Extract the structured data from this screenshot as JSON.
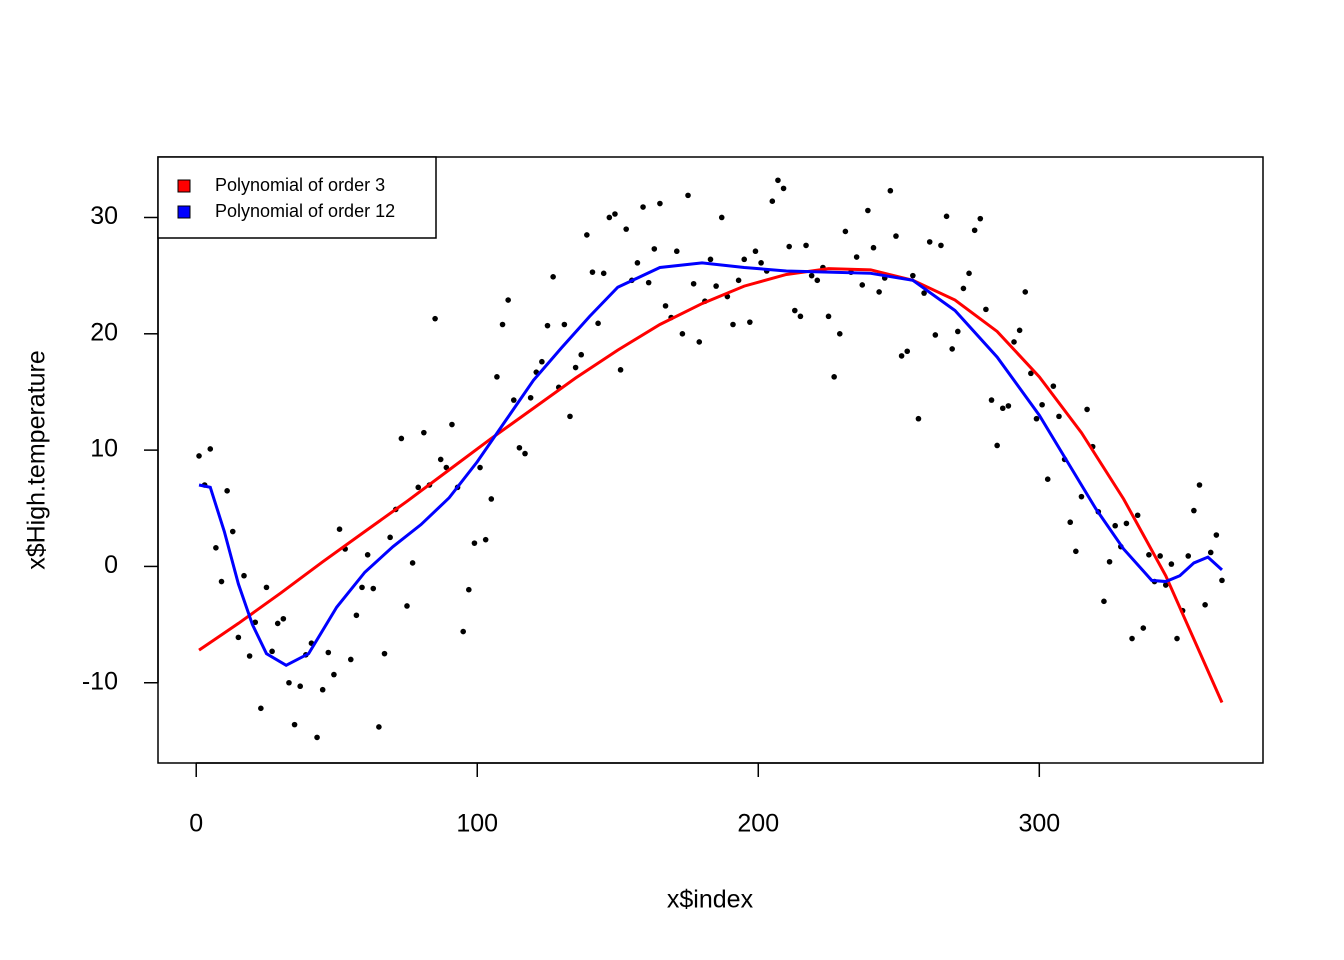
{
  "chart_data": {
    "type": "scatter",
    "x_label": "x$index",
    "y_label": "x$High.temperature",
    "xlim": [
      -13.6,
      379.6
    ],
    "ylim": [
      -16.9,
      35.2
    ],
    "xticks": [
      0,
      100,
      200,
      300
    ],
    "yticks": [
      -10,
      0,
      10,
      20,
      30
    ],
    "legend": "top-left",
    "points": {
      "color": "#000000",
      "x": [
        1,
        3,
        5,
        7,
        9,
        11,
        13,
        15,
        17,
        19,
        21,
        23,
        25,
        27,
        29,
        31,
        33,
        35,
        37,
        39,
        41,
        43,
        45,
        47,
        49,
        51,
        53,
        55,
        57,
        59,
        61,
        63,
        65,
        67,
        69,
        71,
        73,
        75,
        77,
        79,
        81,
        83,
        85,
        87,
        89,
        91,
        93,
        95,
        97,
        99,
        101,
        103,
        105,
        107,
        109,
        111,
        113,
        115,
        117,
        119,
        121,
        123,
        125,
        127,
        129,
        131,
        133,
        135,
        137,
        139,
        141,
        143,
        145,
        147,
        149,
        151,
        153,
        155,
        157,
        159,
        161,
        163,
        165,
        167,
        169,
        171,
        173,
        175,
        177,
        179,
        181,
        183,
        185,
        187,
        189,
        191,
        193,
        195,
        197,
        199,
        201,
        203,
        205,
        207,
        209,
        211,
        213,
        215,
        217,
        219,
        221,
        223,
        225,
        227,
        229,
        231,
        233,
        235,
        237,
        239,
        241,
        243,
        245,
        247,
        249,
        251,
        253,
        255,
        257,
        259,
        261,
        263,
        265,
        267,
        269,
        271,
        273,
        275,
        277,
        279,
        281,
        283,
        285,
        287,
        289,
        291,
        293,
        295,
        297,
        299,
        301,
        303,
        305,
        307,
        309,
        311,
        313,
        315,
        317,
        319,
        321,
        323,
        325,
        327,
        329,
        331,
        333,
        335,
        337,
        339,
        341,
        343,
        345,
        347,
        349,
        351,
        353,
        355,
        357,
        359,
        361,
        363,
        365
      ],
      "y": [
        9.5,
        7.0,
        10.1,
        1.6,
        -1.3,
        6.5,
        3.0,
        -6.1,
        -0.8,
        -7.7,
        -4.8,
        -12.2,
        -1.8,
        -7.3,
        -4.9,
        -4.5,
        -10.0,
        -13.6,
        -10.3,
        -7.6,
        -6.6,
        -14.7,
        -10.6,
        -7.4,
        -9.3,
        3.2,
        1.5,
        -8.0,
        -4.2,
        -1.8,
        1.0,
        -1.9,
        -13.8,
        -7.5,
        2.5,
        4.9,
        11.0,
        -3.4,
        0.3,
        6.8,
        11.5,
        7.0,
        21.3,
        9.2,
        8.5,
        12.2,
        6.8,
        -5.6,
        -2.0,
        2.0,
        8.5,
        2.3,
        5.8,
        16.3,
        20.8,
        22.9,
        14.3,
        10.2,
        9.7,
        14.5,
        16.7,
        17.6,
        20.7,
        24.9,
        15.4,
        20.8,
        12.9,
        17.1,
        18.2,
        28.5,
        25.3,
        20.9,
        25.2,
        30.0,
        30.3,
        16.9,
        29.0,
        24.6,
        26.1,
        30.9,
        24.4,
        27.3,
        31.2,
        22.4,
        21.4,
        27.1,
        20.0,
        31.9,
        24.3,
        19.3,
        22.8,
        26.4,
        24.1,
        30.0,
        23.2,
        20.8,
        24.6,
        26.4,
        21.0,
        27.1,
        26.1,
        25.4,
        31.4,
        33.2,
        32.5,
        27.5,
        22.0,
        21.5,
        27.6,
        25.0,
        24.6,
        25.7,
        21.5,
        16.3,
        20.0,
        28.8,
        25.3,
        26.6,
        24.2,
        30.6,
        27.4,
        23.6,
        24.8,
        32.3,
        28.4,
        18.1,
        18.5,
        25.0,
        12.7,
        23.5,
        27.9,
        19.9,
        27.6,
        30.1,
        18.7,
        20.2,
        23.9,
        25.2,
        28.9,
        29.9,
        22.1,
        14.3,
        10.4,
        13.6,
        13.8,
        19.3,
        20.3,
        23.6,
        16.6,
        12.7,
        13.9,
        7.5,
        15.5,
        12.9,
        9.2,
        3.8,
        1.3,
        6.0,
        13.5,
        10.3,
        4.7,
        -3.0,
        0.4,
        3.5,
        1.7,
        3.7,
        -6.2,
        4.4,
        -5.3,
        1.0,
        -1.3,
        0.9,
        -1.6,
        0.2,
        -6.2,
        -3.8,
        0.9,
        4.8,
        7.0,
        -3.3,
        1.2,
        2.7,
        -1.2
      ]
    },
    "series": [
      {
        "name": "Polynomial of order 3",
        "color": "#ff0000",
        "x": [
          1,
          15,
          30,
          45,
          60,
          75,
          90,
          105,
          120,
          135,
          150,
          165,
          180,
          195,
          210,
          225,
          240,
          255,
          270,
          285,
          300,
          315,
          330,
          345,
          365
        ],
        "values": [
          -7.2,
          -4.9,
          -2.3,
          0.4,
          3.0,
          5.6,
          8.3,
          11.0,
          13.6,
          16.2,
          18.6,
          20.8,
          22.6,
          24.1,
          25.1,
          25.6,
          25.5,
          24.6,
          22.9,
          20.2,
          16.3,
          11.5,
          5.8,
          -0.8,
          -11.7
        ]
      },
      {
        "name": "Polynomial of order 12",
        "color": "#0000ff",
        "x": [
          1,
          5,
          10,
          15,
          20,
          25,
          32,
          40,
          50,
          60,
          70,
          80,
          90,
          100,
          110,
          120,
          130,
          140,
          150,
          165,
          180,
          195,
          210,
          225,
          240,
          255,
          270,
          285,
          300,
          310,
          320,
          330,
          340,
          345,
          350,
          355,
          360,
          365
        ],
        "values": [
          7.0,
          6.8,
          3.0,
          -1.5,
          -5.0,
          -7.5,
          -8.5,
          -7.5,
          -3.5,
          -0.5,
          1.7,
          3.6,
          5.9,
          9.0,
          12.5,
          16.0,
          18.8,
          21.5,
          24.0,
          25.7,
          26.1,
          25.7,
          25.4,
          25.3,
          25.2,
          24.6,
          22.0,
          18.0,
          13.0,
          9.0,
          5.0,
          1.5,
          -1.2,
          -1.3,
          -0.8,
          0.3,
          0.8,
          -0.3
        ]
      }
    ]
  }
}
